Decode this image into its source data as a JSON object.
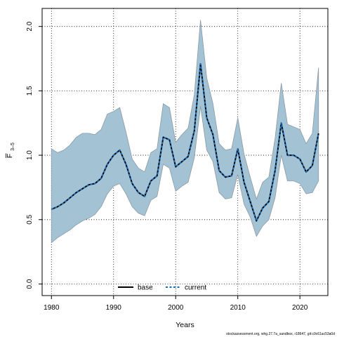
{
  "chart_data": {
    "type": "area",
    "xlabel": "Years",
    "ylabel_main": "F",
    "ylabel_sub": "3–5",
    "xlim": [
      1978.5,
      2024.5
    ],
    "ylim": [
      -0.09,
      2.14
    ],
    "xticks": [
      1980,
      1990,
      2000,
      2010,
      2020
    ],
    "yticks": [
      0.0,
      0.5,
      1.0,
      1.5,
      2.0
    ],
    "ytick_labels": [
      "0.0",
      "0.5",
      "1.0",
      "1.5",
      "2.0"
    ],
    "grid": true,
    "legend_position": "bottom-center",
    "x": [
      1980,
      1981,
      1982,
      1983,
      1984,
      1985,
      1986,
      1987,
      1988,
      1989,
      1990,
      1991,
      1992,
      1993,
      1994,
      1995,
      1996,
      1997,
      1998,
      1999,
      2000,
      2001,
      2002,
      2003,
      2004,
      2005,
      2006,
      2007,
      2008,
      2009,
      2010,
      2011,
      2012,
      2013,
      2014,
      2015,
      2016,
      2017,
      2018,
      2019,
      2020,
      2021,
      2022,
      2023
    ],
    "band": {
      "name": "confidence interval",
      "color": "#a3c3d4",
      "edge_color": "#8b9aa3",
      "lower": [
        0.32,
        0.36,
        0.39,
        0.42,
        0.46,
        0.49,
        0.51,
        0.54,
        0.6,
        0.7,
        0.76,
        0.78,
        0.7,
        0.6,
        0.55,
        0.53,
        0.65,
        0.68,
        0.93,
        0.9,
        0.72,
        0.76,
        0.79,
        0.98,
        1.38,
        1.04,
        0.95,
        0.71,
        0.66,
        0.67,
        0.85,
        0.62,
        0.52,
        0.37,
        0.45,
        0.5,
        0.67,
        1.0,
        0.8,
        0.8,
        0.78,
        0.7,
        0.71,
        0.8
      ],
      "upper": [
        1.05,
        1.02,
        1.04,
        1.08,
        1.14,
        1.17,
        1.17,
        1.16,
        1.2,
        1.32,
        1.34,
        1.37,
        1.18,
        0.97,
        0.9,
        0.87,
        1.02,
        1.05,
        1.4,
        1.37,
        1.1,
        1.16,
        1.21,
        1.47,
        2.05,
        1.6,
        1.4,
        1.09,
        1.04,
        1.05,
        1.29,
        1.01,
        0.83,
        0.66,
        0.79,
        0.83,
        1.13,
        1.56,
        1.24,
        1.22,
        1.2,
        1.09,
        1.17,
        1.68
      ]
    },
    "series": [
      {
        "name": "base",
        "color": "#000000",
        "style": "solid",
        "values": [
          0.58,
          0.6,
          0.63,
          0.67,
          0.71,
          0.74,
          0.77,
          0.78,
          0.82,
          0.93,
          1.0,
          1.04,
          0.93,
          0.78,
          0.71,
          0.68,
          0.8,
          0.84,
          1.14,
          1.12,
          0.91,
          0.95,
          0.99,
          1.19,
          1.71,
          1.29,
          1.16,
          0.88,
          0.83,
          0.84,
          1.05,
          0.79,
          0.64,
          0.49,
          0.59,
          0.64,
          0.88,
          1.25,
          1.0,
          1.0,
          0.97,
          0.87,
          0.92,
          1.17
        ]
      },
      {
        "name": "current",
        "color": "#1a6fbd",
        "style": "dashed",
        "values": [
          0.58,
          0.6,
          0.63,
          0.67,
          0.71,
          0.74,
          0.77,
          0.78,
          0.82,
          0.93,
          1.0,
          1.04,
          0.93,
          0.78,
          0.71,
          0.68,
          0.8,
          0.84,
          1.14,
          1.12,
          0.91,
          0.95,
          0.99,
          1.19,
          1.71,
          1.29,
          1.16,
          0.88,
          0.83,
          0.84,
          1.05,
          0.79,
          0.64,
          0.49,
          0.59,
          0.64,
          0.88,
          1.25,
          1.0,
          1.0,
          0.97,
          0.87,
          0.92,
          1.17
        ]
      }
    ]
  },
  "footer": {
    "text": "stockassessment.org, whg.27.7a_sandbox, r18647, git:c9c61ac53a0d"
  }
}
